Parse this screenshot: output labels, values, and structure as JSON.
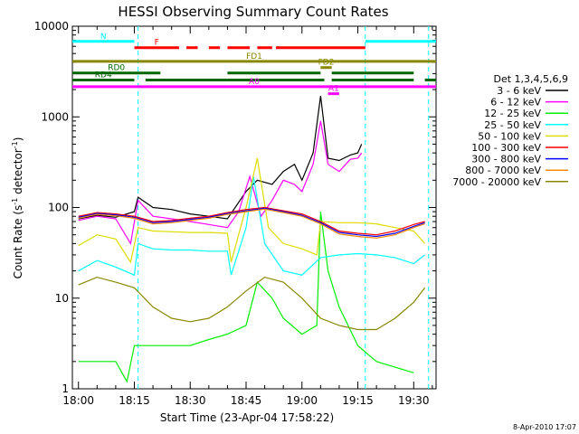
{
  "chart_data": {
    "type": "line",
    "title": "HESSI Observing Summary Count Rates",
    "xlabel": "Start Time (23-Apr-04 17:58:22)",
    "ylabel": "Count Rate (s⁻¹ detector⁻¹)",
    "ylabel_main": "Count Rate (s",
    "ylabel_sup1": "-1",
    "ylabel_mid": " detector",
    "ylabel_sup2": "-1",
    "ylabel_end": ")",
    "x_scale": "time",
    "x_range": [
      "17:58:22",
      "19:36:00"
    ],
    "x_ticks": [
      {
        "t": "18:00",
        "label": "18:00"
      },
      {
        "t": "18:15",
        "label": "18:15"
      },
      {
        "t": "18:30",
        "label": "18:30"
      },
      {
        "t": "18:45",
        "label": "18:45"
      },
      {
        "t": "19:00",
        "label": "19:00"
      },
      {
        "t": "19:15",
        "label": "19:15"
      },
      {
        "t": "19:30",
        "label": "19:30"
      }
    ],
    "y_scale": "log",
    "y_range": [
      1,
      10000
    ],
    "y_ticks": [
      {
        "v": 1,
        "label": "1"
      },
      {
        "v": 10,
        "label": "10"
      },
      {
        "v": 100,
        "label": "100"
      },
      {
        "v": 1000,
        "label": "1000"
      },
      {
        "v": 10000,
        "label": "10000"
      }
    ],
    "legend_position": "right",
    "legend_header": "Det 1,3,4,5,6,9",
    "series": [
      {
        "name": "3 - 6 keV",
        "color": "#000000",
        "points": [
          [
            "18:00",
            75
          ],
          [
            "18:05",
            82
          ],
          [
            "18:10",
            78
          ],
          [
            "18:15",
            90
          ],
          [
            "18:16",
            130
          ],
          [
            "18:20",
            100
          ],
          [
            "18:25",
            95
          ],
          [
            "18:30",
            85
          ],
          [
            "18:35",
            80
          ],
          [
            "18:40",
            75
          ],
          [
            "18:45",
            150
          ],
          [
            "18:48",
            200
          ],
          [
            "18:52",
            180
          ],
          [
            "18:55",
            250
          ],
          [
            "18:58",
            300
          ],
          [
            "19:00",
            200
          ],
          [
            "19:03",
            400
          ],
          [
            "19:05",
            1700
          ],
          [
            "19:07",
            350
          ],
          [
            "19:10",
            330
          ],
          [
            "19:13",
            380
          ],
          [
            "19:15",
            400
          ],
          [
            "19:16",
            500
          ]
        ]
      },
      {
        "name": "6 - 12 keV",
        "color": "#ff00ff",
        "points": [
          [
            "18:00",
            72
          ],
          [
            "18:05",
            80
          ],
          [
            "18:10",
            75
          ],
          [
            "18:14",
            40
          ],
          [
            "18:16",
            120
          ],
          [
            "18:20",
            80
          ],
          [
            "18:25",
            75
          ],
          [
            "18:30",
            70
          ],
          [
            "18:35",
            65
          ],
          [
            "18:40",
            60
          ],
          [
            "18:43",
            90
          ],
          [
            "18:46",
            220
          ],
          [
            "18:49",
            80
          ],
          [
            "18:52",
            120
          ],
          [
            "18:55",
            200
          ],
          [
            "18:58",
            180
          ],
          [
            "19:00",
            150
          ],
          [
            "19:03",
            300
          ],
          [
            "19:05",
            900
          ],
          [
            "19:07",
            300
          ],
          [
            "19:10",
            250
          ],
          [
            "19:13",
            340
          ],
          [
            "19:15",
            350
          ],
          [
            "19:16",
            400
          ]
        ]
      },
      {
        "name": "12 - 25 keV",
        "color": "#00ee00",
        "points": [
          [
            "18:00",
            2
          ],
          [
            "18:10",
            2
          ],
          [
            "18:13",
            1.2
          ],
          [
            "18:15",
            3
          ],
          [
            "18:20",
            3
          ],
          [
            "18:25",
            3
          ],
          [
            "18:30",
            3
          ],
          [
            "18:35",
            3.5
          ],
          [
            "18:40",
            4
          ],
          [
            "18:45",
            5
          ],
          [
            "18:48",
            15
          ],
          [
            "18:52",
            10
          ],
          [
            "18:55",
            6
          ],
          [
            "19:00",
            4
          ],
          [
            "19:04",
            5
          ],
          [
            "19:05",
            90
          ],
          [
            "19:07",
            20
          ],
          [
            "19:10",
            8
          ],
          [
            "19:15",
            3
          ],
          [
            "19:20",
            2
          ],
          [
            "19:30",
            1.5
          ]
        ]
      },
      {
        "name": "25 - 50 keV",
        "color": "#00ffff",
        "points": [
          [
            "18:00",
            20
          ],
          [
            "18:05",
            26
          ],
          [
            "18:10",
            22
          ],
          [
            "18:15",
            18
          ],
          [
            "18:16",
            40
          ],
          [
            "18:20",
            35
          ],
          [
            "18:25",
            34
          ],
          [
            "18:30",
            34
          ],
          [
            "18:35",
            33
          ],
          [
            "18:40",
            33
          ],
          [
            "18:41",
            18
          ],
          [
            "18:45",
            60
          ],
          [
            "18:47",
            220
          ],
          [
            "18:50",
            40
          ],
          [
            "18:55",
            20
          ],
          [
            "19:00",
            18
          ],
          [
            "19:05",
            28
          ],
          [
            "19:10",
            30
          ],
          [
            "19:15",
            31
          ],
          [
            "19:20",
            30
          ],
          [
            "19:25",
            28
          ],
          [
            "19:30",
            24
          ],
          [
            "19:33",
            30
          ]
        ]
      },
      {
        "name": "50 - 100 keV",
        "color": "#dddd00",
        "points": [
          [
            "18:00",
            38
          ],
          [
            "18:05",
            50
          ],
          [
            "18:10",
            45
          ],
          [
            "18:14",
            25
          ],
          [
            "18:16",
            60
          ],
          [
            "18:20",
            55
          ],
          [
            "18:25",
            54
          ],
          [
            "18:30",
            53
          ],
          [
            "18:35",
            53
          ],
          [
            "18:40",
            52
          ],
          [
            "18:41",
            25
          ],
          [
            "18:45",
            100
          ],
          [
            "18:48",
            350
          ],
          [
            "18:51",
            60
          ],
          [
            "18:55",
            40
          ],
          [
            "19:00",
            35
          ],
          [
            "19:04",
            30
          ],
          [
            "19:05",
            70
          ],
          [
            "19:10",
            68
          ],
          [
            "19:15",
            68
          ],
          [
            "19:20",
            66
          ],
          [
            "19:25",
            60
          ],
          [
            "19:30",
            55
          ],
          [
            "19:33",
            40
          ]
        ]
      },
      {
        "name": "100 - 300 keV",
        "color": "#ff0000",
        "points": [
          [
            "18:00",
            80
          ],
          [
            "18:05",
            88
          ],
          [
            "18:10",
            85
          ],
          [
            "18:15",
            80
          ],
          [
            "18:20",
            70
          ],
          [
            "18:25",
            72
          ],
          [
            "18:30",
            76
          ],
          [
            "18:35",
            80
          ],
          [
            "18:40",
            88
          ],
          [
            "18:45",
            95
          ],
          [
            "18:50",
            100
          ],
          [
            "18:55",
            92
          ],
          [
            "19:00",
            85
          ],
          [
            "19:05",
            70
          ],
          [
            "19:10",
            55
          ],
          [
            "19:15",
            52
          ],
          [
            "19:20",
            50
          ],
          [
            "19:25",
            55
          ],
          [
            "19:30",
            65
          ],
          [
            "19:33",
            70
          ]
        ]
      },
      {
        "name": "300 - 800 keV",
        "color": "#0000ff",
        "points": [
          [
            "18:00",
            78
          ],
          [
            "18:05",
            86
          ],
          [
            "18:10",
            83
          ],
          [
            "18:15",
            78
          ],
          [
            "18:20",
            68
          ],
          [
            "18:25",
            70
          ],
          [
            "18:30",
            74
          ],
          [
            "18:35",
            78
          ],
          [
            "18:40",
            86
          ],
          [
            "18:45",
            92
          ],
          [
            "18:50",
            98
          ],
          [
            "18:55",
            90
          ],
          [
            "19:00",
            82
          ],
          [
            "19:05",
            68
          ],
          [
            "19:10",
            53
          ],
          [
            "19:15",
            50
          ],
          [
            "19:20",
            48
          ],
          [
            "19:25",
            52
          ],
          [
            "19:30",
            62
          ],
          [
            "19:33",
            68
          ]
        ]
      },
      {
        "name": "800 - 7000 keV",
        "color": "#ff8800",
        "points": [
          [
            "18:00",
            76
          ],
          [
            "18:05",
            84
          ],
          [
            "18:10",
            81
          ],
          [
            "18:15",
            76
          ],
          [
            "18:20",
            66
          ],
          [
            "18:25",
            68
          ],
          [
            "18:30",
            72
          ],
          [
            "18:35",
            76
          ],
          [
            "18:40",
            84
          ],
          [
            "18:45",
            90
          ],
          [
            "18:50",
            96
          ],
          [
            "18:55",
            88
          ],
          [
            "19:00",
            80
          ],
          [
            "19:05",
            66
          ],
          [
            "19:10",
            51
          ],
          [
            "19:15",
            48
          ],
          [
            "19:20",
            46
          ],
          [
            "19:25",
            50
          ],
          [
            "19:30",
            60
          ],
          [
            "19:33",
            66
          ]
        ]
      },
      {
        "name": "7000 - 20000 keV",
        "color": "#888800",
        "points": [
          [
            "18:00",
            14
          ],
          [
            "18:05",
            17
          ],
          [
            "18:10",
            15
          ],
          [
            "18:15",
            13
          ],
          [
            "18:20",
            8
          ],
          [
            "18:25",
            6
          ],
          [
            "18:30",
            5.5
          ],
          [
            "18:35",
            6
          ],
          [
            "18:40",
            8
          ],
          [
            "18:45",
            12
          ],
          [
            "18:50",
            17
          ],
          [
            "18:55",
            15
          ],
          [
            "19:00",
            10
          ],
          [
            "19:05",
            6
          ],
          [
            "19:10",
            5
          ],
          [
            "19:15",
            4.5
          ],
          [
            "19:20",
            4.5
          ],
          [
            "19:25",
            6
          ],
          [
            "19:30",
            9
          ],
          [
            "19:33",
            13
          ]
        ]
      }
    ],
    "flag_bars": [
      {
        "label": "N",
        "color": "#00ffff",
        "value": 6800,
        "segments": [
          [
            "17:58:22",
            "18:15"
          ],
          [
            "19:17",
            "19:36"
          ]
        ]
      },
      {
        "label": "F",
        "color": "#ff0000",
        "value": 5800,
        "segments": [
          [
            "18:15",
            "18:27"
          ],
          [
            "18:29",
            "18:32"
          ],
          [
            "18:35",
            "18:38"
          ],
          [
            "18:40",
            "18:46"
          ],
          [
            "18:48",
            "18:52"
          ],
          [
            "18:53",
            "19:17"
          ]
        ]
      },
      {
        "label": "FD1",
        "color": "#888800",
        "value": 4100,
        "segments": [
          [
            "17:58:22",
            "19:36"
          ]
        ]
      },
      {
        "label": "FD2",
        "color": "#888800",
        "value": 3500,
        "segments": [
          [
            "19:05",
            "19:08"
          ]
        ]
      },
      {
        "label": "RD0",
        "color": "#006600",
        "value": 3050,
        "segments": [
          [
            "17:58:22",
            "18:22"
          ],
          [
            "18:40",
            "19:05"
          ],
          [
            "19:08",
            "19:30"
          ]
        ]
      },
      {
        "label": "RD4",
        "color": "#006600",
        "value": 2550,
        "segments": [
          [
            "17:58:22",
            "18:15"
          ],
          [
            "18:18",
            "18:40"
          ],
          [
            "18:40",
            "19:06"
          ],
          [
            "19:08",
            "19:30"
          ],
          [
            "19:33",
            "19:36"
          ]
        ]
      },
      {
        "label": "A0",
        "color": "#ff00ff",
        "value": 2150,
        "segments": [
          [
            "17:58:22",
            "19:36"
          ]
        ]
      },
      {
        "label": "A1",
        "color": "#ff00ff",
        "value": 1800,
        "segments": [
          [
            "19:07",
            "19:10"
          ]
        ]
      }
    ],
    "saa_markers": [
      "18:16",
      "19:17",
      "19:34"
    ],
    "saa_color": "#00ffff"
  },
  "footer": {
    "timestamp": "8-Apr-2010 17:07"
  }
}
